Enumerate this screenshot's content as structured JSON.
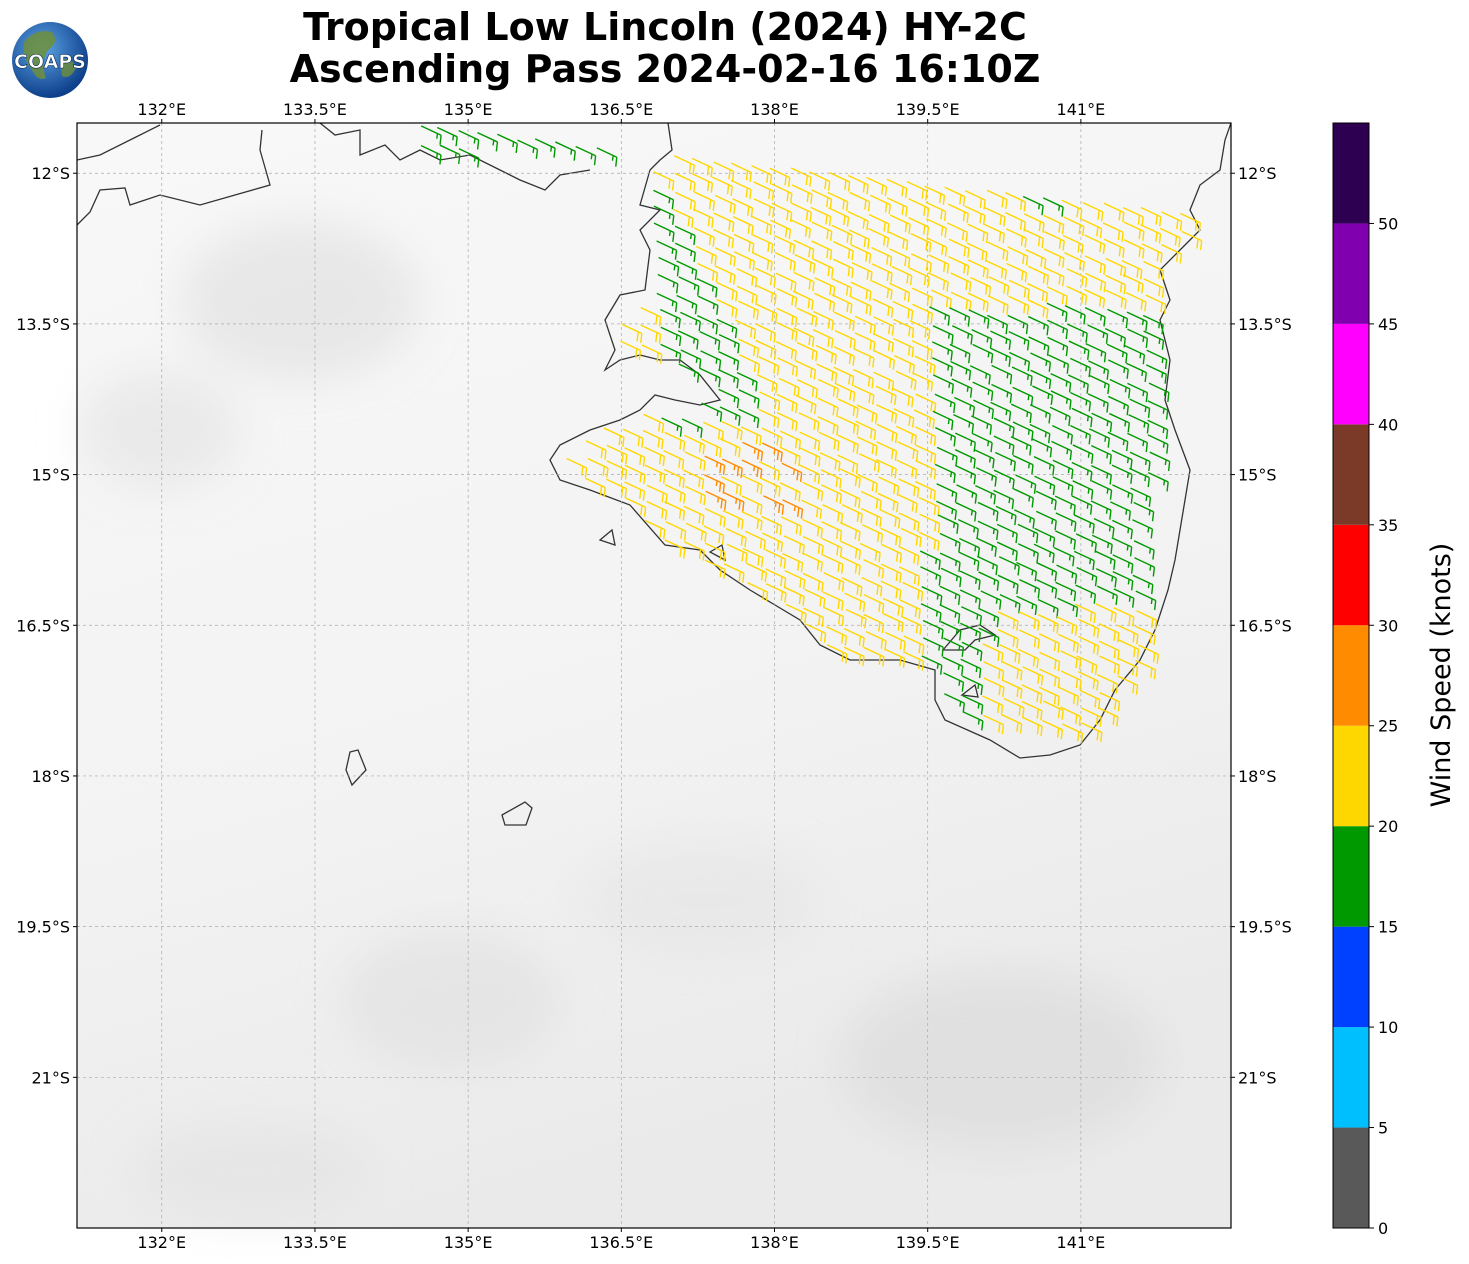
{
  "header": {
    "title_line1": "Tropical Low Lincoln (2024) HY-2C",
    "title_line2": "Ascending Pass 2024-02-16 16:10Z",
    "logo_text": "COAPS"
  },
  "map": {
    "lon_range": [
      131.17,
      142.47
    ],
    "lat_range": [
      -22.5,
      -11.5
    ],
    "lon_ticks": [
      "132°E",
      "133.5°E",
      "135°E",
      "136.5°E",
      "138°E",
      "139.5°E",
      "141°E"
    ],
    "lat_ticks": [
      "12°S",
      "13.5°S",
      "15°S",
      "16.5°S",
      "18°S",
      "19.5°S",
      "21°S"
    ],
    "gridlines": true,
    "background": "grayscale satellite imagery"
  },
  "colorbar": {
    "label": "Wind Speed (knots)",
    "tick_labels": [
      "0",
      "5",
      "10",
      "15",
      "20",
      "25",
      "30",
      "35",
      "40",
      "45",
      "50"
    ],
    "bins": [
      {
        "min": 0,
        "max": 5,
        "color": "#595959"
      },
      {
        "min": 5,
        "max": 10,
        "color": "#00bfff"
      },
      {
        "min": 10,
        "max": 15,
        "color": "#0040ff"
      },
      {
        "min": 15,
        "max": 20,
        "color": "#009900"
      },
      {
        "min": 20,
        "max": 25,
        "color": "#ffd700"
      },
      {
        "min": 25,
        "max": 30,
        "color": "#ff8c00"
      },
      {
        "min": 30,
        "max": 35,
        "color": "#ff0000"
      },
      {
        "min": 35,
        "max": 40,
        "color": "#7b3a28"
      },
      {
        "min": 40,
        "max": 45,
        "color": "#ff00ff"
      },
      {
        "min": 45,
        "max": 50,
        "color": "#8000b0"
      },
      {
        "min": 50,
        "max": 55,
        "color": "#2e0052"
      }
    ]
  }
}
